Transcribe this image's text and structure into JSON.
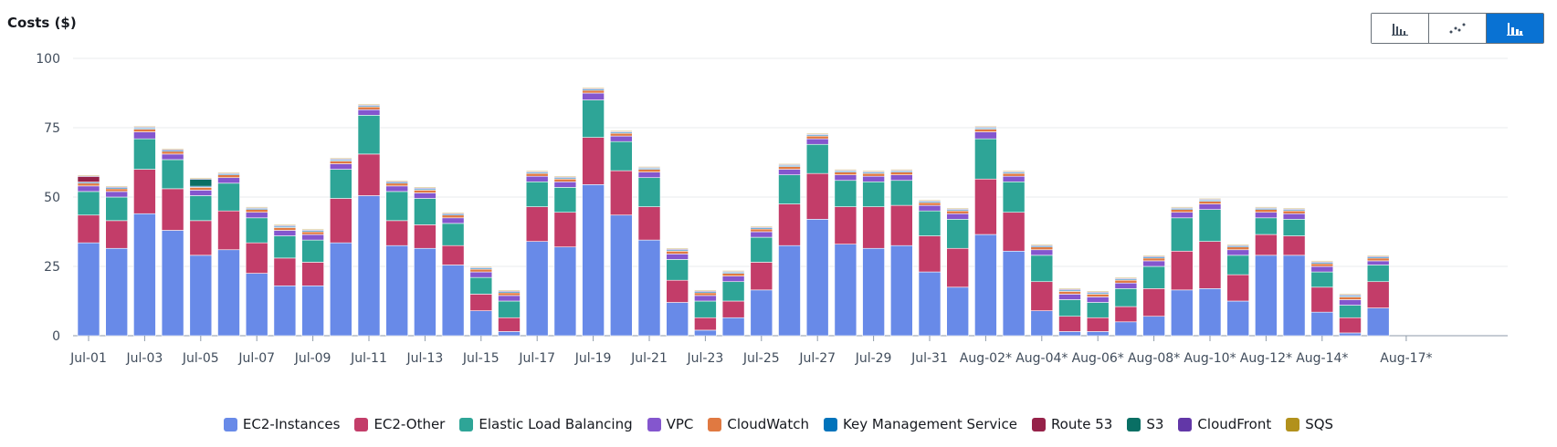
{
  "title": "Costs ($)",
  "view_toggle": [
    {
      "icon": "bar-chart-icon",
      "active": false
    },
    {
      "icon": "line-chart-icon",
      "active": false
    },
    {
      "icon": "stacked-bar-chart-icon",
      "active": true
    }
  ],
  "chart_data": {
    "type": "bar",
    "stacked": true,
    "ylim": [
      0,
      100
    ],
    "yticks": [
      0,
      25,
      50,
      75,
      100
    ],
    "grid": true,
    "legend_position": "bottom",
    "categories": [
      "Jul-01",
      "Jul-02",
      "Jul-03",
      "Jul-04",
      "Jul-05",
      "Jul-06",
      "Jul-07",
      "Jul-08",
      "Jul-09",
      "Jul-10",
      "Jul-11",
      "Jul-12",
      "Jul-13",
      "Jul-14",
      "Jul-15",
      "Jul-16",
      "Jul-17",
      "Jul-18",
      "Jul-19",
      "Jul-20",
      "Jul-21",
      "Jul-22",
      "Jul-23",
      "Jul-24",
      "Jul-25",
      "Jul-26",
      "Jul-27",
      "Jul-28",
      "Jul-29",
      "Jul-30",
      "Jul-31",
      "Aug-01",
      "Aug-02*",
      "Aug-03*",
      "Aug-04*",
      "Aug-05*",
      "Aug-06*",
      "Aug-07*",
      "Aug-08*",
      "Aug-09*",
      "Aug-10*",
      "Aug-11*",
      "Aug-12*",
      "Aug-13*",
      "Aug-14*",
      "Aug-15*",
      "Aug-16*",
      "Aug-17*"
    ],
    "xtick_labels": [
      "Jul-01",
      "Jul-03",
      "Jul-05",
      "Jul-07",
      "Jul-09",
      "Jul-11",
      "Jul-13",
      "Jul-15",
      "Jul-17",
      "Jul-19",
      "Jul-21",
      "Jul-23",
      "Jul-25",
      "Jul-27",
      "Jul-29",
      "Jul-31",
      "Aug-02*",
      "Aug-04*",
      "Aug-06*",
      "Aug-08*",
      "Aug-10*",
      "Aug-12*",
      "Aug-14*",
      "Aug-17*"
    ],
    "series": [
      {
        "name": "EC2-Instances",
        "color": "#688ae8",
        "values": [
          33.5,
          31.5,
          44,
          38,
          29,
          31,
          22.5,
          18,
          18,
          33.5,
          50.5,
          32.5,
          31.5,
          25.5,
          9,
          1.5,
          34,
          32,
          54.5,
          43.5,
          34.5,
          12,
          2,
          6.5,
          16.5,
          32.5,
          42,
          33,
          31.5,
          32.5,
          23,
          17.5,
          36.5,
          30.5,
          9,
          1.5,
          1.5,
          5,
          7,
          16.5,
          17,
          12.5,
          29,
          29,
          8.5,
          1,
          10,
          0
        ]
      },
      {
        "name": "EC2-Other",
        "color": "#c33d69",
        "values": [
          10,
          10,
          16,
          15,
          12.5,
          14,
          11,
          10,
          8.5,
          16,
          15,
          9,
          8.5,
          7,
          6,
          5,
          12.5,
          12.5,
          17,
          16,
          12,
          8,
          4.5,
          6,
          10,
          15,
          16.5,
          13.5,
          15,
          14.5,
          13,
          14,
          20,
          14,
          10.5,
          5.5,
          5,
          5.5,
          10,
          14,
          17,
          9.5,
          7.5,
          7,
          9,
          5.5,
          9.5,
          0
        ]
      },
      {
        "name": "Elastic Load Balancing",
        "color": "#2ea597",
        "values": [
          8.5,
          8.5,
          11,
          10.5,
          9,
          10,
          9,
          8,
          8,
          10.5,
          14,
          10.5,
          9.5,
          8,
          6,
          6,
          9,
          9,
          13.5,
          10.5,
          10.5,
          7.5,
          6,
          7,
          9,
          10.5,
          10.5,
          9.5,
          9,
          9,
          9,
          10.5,
          14.5,
          11,
          9.5,
          6,
          5.5,
          6.5,
          8,
          12,
          11.5,
          7,
          6,
          6,
          5.5,
          4.5,
          6,
          0
        ]
      },
      {
        "name": "VPC",
        "color": "#8456ce",
        "values": [
          2,
          2,
          2.5,
          2,
          2,
          2,
          2,
          2,
          2,
          2,
          2,
          2,
          2,
          2,
          2,
          2,
          2,
          2,
          2.5,
          2,
          2,
          2,
          2,
          2,
          2,
          2,
          2,
          2,
          2,
          2,
          2,
          2,
          2.5,
          2,
          2,
          2,
          2,
          2,
          2,
          2,
          2,
          2,
          2,
          2,
          2,
          2,
          1.5,
          0
        ]
      },
      {
        "name": "CloudWatch",
        "color": "#e07941",
        "values": [
          1,
          1,
          1,
          1,
          1,
          1,
          1,
          1,
          1,
          1,
          1,
          1,
          1,
          1,
          1,
          1,
          1,
          1,
          1,
          1,
          1,
          1,
          1,
          1,
          1,
          1,
          1,
          1,
          1,
          1,
          1,
          1,
          1,
          1,
          1,
          1,
          1,
          1,
          1,
          1,
          1,
          1,
          1,
          1,
          1,
          1,
          1,
          0
        ]
      },
      {
        "name": "Key Management Service",
        "color": "#0073bb",
        "values": [
          0.4,
          0.4,
          0.4,
          0.4,
          0.4,
          0.4,
          0.4,
          0.4,
          0.4,
          0.4,
          0.4,
          0.4,
          0.4,
          0.4,
          0.4,
          0.4,
          0.4,
          0.4,
          0.4,
          0.4,
          0.4,
          0.4,
          0.4,
          0.4,
          0.4,
          0.4,
          0.4,
          0.4,
          0.4,
          0.4,
          0.4,
          0.4,
          0.4,
          0.4,
          0.4,
          0.4,
          0.4,
          0.4,
          0.4,
          0.4,
          0.4,
          0.4,
          0.4,
          0.4,
          0.4,
          0.4,
          0.4,
          0
        ]
      },
      {
        "name": "Route 53",
        "color": "#962249",
        "values": [
          2,
          0,
          0,
          0,
          0,
          0,
          0,
          0,
          0,
          0,
          0,
          0,
          0,
          0,
          0,
          0,
          0,
          0,
          0,
          0,
          0,
          0,
          0,
          0,
          0,
          0,
          0,
          0,
          0,
          0,
          0,
          0,
          0,
          0,
          0,
          0,
          0,
          0,
          0,
          0,
          0,
          0,
          0,
          0,
          0,
          0,
          0,
          0
        ]
      },
      {
        "name": "S3",
        "color": "#096f64",
        "values": [
          0,
          0,
          0,
          0,
          2.5,
          0,
          0,
          0,
          0,
          0,
          0,
          0,
          0,
          0,
          0,
          0,
          0,
          0,
          0,
          0,
          0,
          0,
          0,
          0,
          0,
          0,
          0,
          0,
          0,
          0,
          0,
          0,
          0,
          0,
          0,
          0,
          0,
          0,
          0,
          0,
          0,
          0,
          0,
          0,
          0,
          0,
          0,
          0
        ]
      },
      {
        "name": "CloudFront",
        "color": "#6237a7",
        "values": [
          0.3,
          0.3,
          0.3,
          0.3,
          0.3,
          0.3,
          0.3,
          0.3,
          0.3,
          0.3,
          0.3,
          0.3,
          0.3,
          0.3,
          0.3,
          0.3,
          0.3,
          0.3,
          0.3,
          0.3,
          0.3,
          0.3,
          0.3,
          0.3,
          0.3,
          0.3,
          0.3,
          0.3,
          0.3,
          0.3,
          0.3,
          0.3,
          0.3,
          0.3,
          0.3,
          0.3,
          0.3,
          0.3,
          0.3,
          0.3,
          0.3,
          0.3,
          0.3,
          0.3,
          0.3,
          0.3,
          0.3,
          0
        ]
      },
      {
        "name": "SQS",
        "color": "#b2911c",
        "values": [
          0.3,
          0.3,
          0.3,
          0.3,
          0.3,
          0.3,
          0.3,
          0.3,
          0.3,
          0.3,
          0.3,
          0.3,
          0.3,
          0.3,
          0.3,
          0.3,
          0.3,
          0.3,
          0.3,
          0.3,
          0.3,
          0.3,
          0.3,
          0.3,
          0.3,
          0.3,
          0.3,
          0.3,
          0.3,
          0.3,
          0.3,
          0.3,
          0.3,
          0.3,
          0.3,
          0.3,
          0.3,
          0.3,
          0.3,
          0.3,
          0.3,
          0.3,
          0.3,
          0.3,
          0.3,
          0.3,
          0.3,
          0
        ]
      }
    ]
  }
}
